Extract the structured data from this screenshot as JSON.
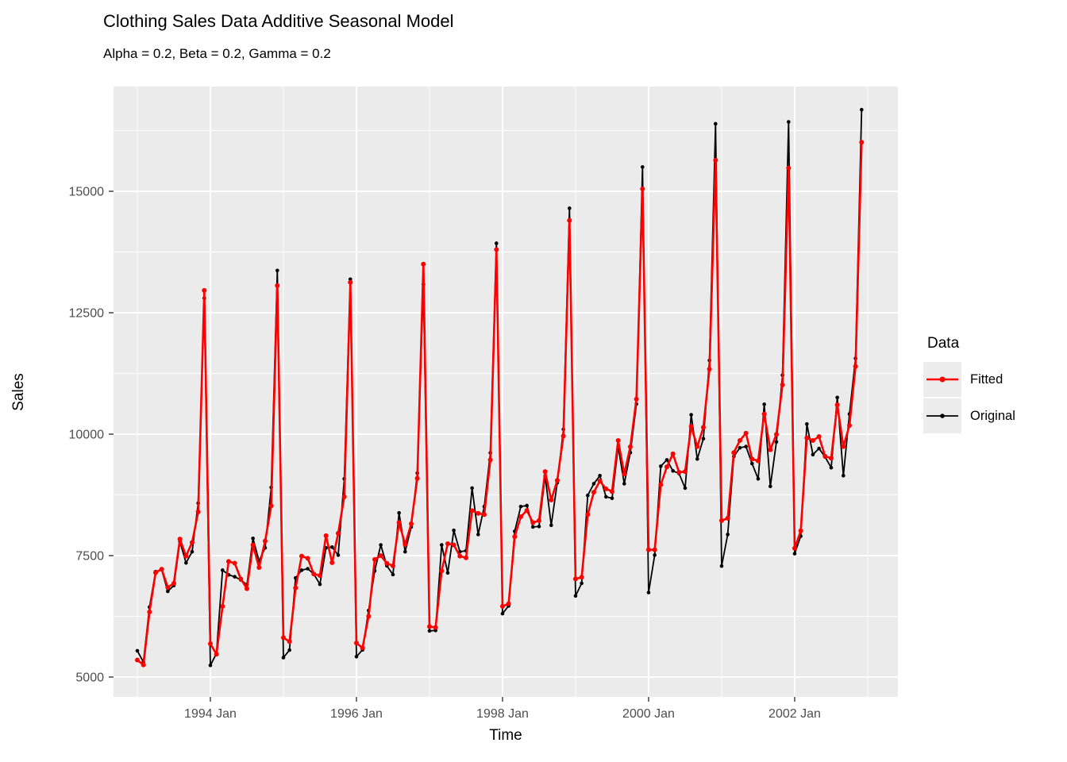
{
  "chart_data": {
    "type": "line",
    "title": "Clothing Sales Data Additive Seasonal Model",
    "subtitle": "Alpha = 0.2, Beta = 0.2, Gamma = 0.2",
    "xlabel": "Time",
    "ylabel": "Sales",
    "legend": {
      "title": "Data",
      "position": "right"
    },
    "panel_bg": "#EBEBEB",
    "grid_color": "#FFFFFF",
    "tick_label_color": "#4D4D4D",
    "tick_mark_color": "#333333",
    "grid": true,
    "ylim": [
      4591,
      17157
    ],
    "y_breaks": [
      5000,
      7500,
      10000,
      12500,
      15000
    ],
    "y_tick_labels": [
      "5000",
      "7500",
      "10000",
      "12500",
      "15000"
    ],
    "y_minor_breaks": [
      6250,
      8750,
      11250,
      13750,
      16250
    ],
    "x_tick_labels": [
      "1994 Jan",
      "1996 Jan",
      "1998 Jan",
      "2000 Jan",
      "2002 Jan"
    ],
    "x_break_month_index": [
      12,
      36,
      60,
      84,
      108
    ],
    "x_minor_month_index": [
      0,
      24,
      48,
      72,
      96,
      120
    ],
    "xlim_month_index": [
      -3.91,
      124.96
    ],
    "x": [
      "1993-01",
      "1993-02",
      "1993-03",
      "1993-04",
      "1993-05",
      "1993-06",
      "1993-07",
      "1993-08",
      "1993-09",
      "1993-10",
      "1993-11",
      "1993-12",
      "1994-01",
      "1994-02",
      "1994-03",
      "1994-04",
      "1994-05",
      "1994-06",
      "1994-07",
      "1994-08",
      "1994-09",
      "1994-10",
      "1994-11",
      "1994-12",
      "1995-01",
      "1995-02",
      "1995-03",
      "1995-04",
      "1995-05",
      "1995-06",
      "1995-07",
      "1995-08",
      "1995-09",
      "1995-10",
      "1995-11",
      "1995-12",
      "1996-01",
      "1996-02",
      "1996-03",
      "1996-04",
      "1996-05",
      "1996-06",
      "1996-07",
      "1996-08",
      "1996-09",
      "1996-10",
      "1996-11",
      "1996-12",
      "1997-01",
      "1997-02",
      "1997-03",
      "1997-04",
      "1997-05",
      "1997-06",
      "1997-07",
      "1997-08",
      "1997-09",
      "1997-10",
      "1997-11",
      "1997-12",
      "1998-01",
      "1998-02",
      "1998-03",
      "1998-04",
      "1998-05",
      "1998-06",
      "1998-07",
      "1998-08",
      "1998-09",
      "1998-10",
      "1998-11",
      "1998-12",
      "1999-01",
      "1999-02",
      "1999-03",
      "1999-04",
      "1999-05",
      "1999-06",
      "1999-07",
      "1999-08",
      "1999-09",
      "1999-10",
      "1999-11",
      "1999-12",
      "2000-01",
      "2000-02",
      "2000-03",
      "2000-04",
      "2000-05",
      "2000-06",
      "2000-07",
      "2000-08",
      "2000-09",
      "2000-10",
      "2000-11",
      "2000-12",
      "2001-01",
      "2001-02",
      "2001-03",
      "2001-04",
      "2001-05",
      "2001-06",
      "2001-07",
      "2001-08",
      "2001-09",
      "2001-10",
      "2001-11",
      "2001-12",
      "2002-01",
      "2002-02",
      "2002-03",
      "2002-04",
      "2002-05",
      "2002-06",
      "2002-07",
      "2002-08",
      "2002-09",
      "2002-10",
      "2002-11",
      "2002-12"
    ],
    "series": [
      {
        "name": "Fitted",
        "color": "#FF0000",
        "values": [
          5350,
          5250,
          6340,
          7150,
          7220,
          6845,
          6930,
          7840,
          7490,
          7770,
          8400,
          12960,
          5685,
          5470,
          6455,
          7380,
          7345,
          7020,
          6820,
          7720,
          7255,
          7800,
          8525,
          13060,
          5810,
          5730,
          6835,
          7490,
          7445,
          7120,
          7090,
          7910,
          7355,
          7960,
          8710,
          13125,
          5700,
          5600,
          6250,
          7420,
          7500,
          7340,
          7290,
          8180,
          7730,
          8155,
          9090,
          13500,
          6040,
          6020,
          7185,
          7745,
          7720,
          7490,
          7455,
          8425,
          8370,
          8345,
          9470,
          13800,
          6455,
          6510,
          7890,
          8300,
          8430,
          8180,
          8220,
          9230,
          8645,
          9050,
          9960,
          14400,
          7020,
          7055,
          8345,
          8805,
          9035,
          8875,
          8820,
          9870,
          9180,
          9740,
          10720,
          15050,
          7620,
          7620,
          8960,
          9325,
          9595,
          9215,
          9230,
          10160,
          9745,
          10140,
          11340,
          15640,
          8220,
          8270,
          9620,
          9870,
          10020,
          9490,
          9450,
          10415,
          9680,
          9995,
          11015,
          15480,
          7650,
          8010,
          9925,
          9870,
          9950,
          9545,
          9505,
          10605,
          9745,
          10180,
          11395,
          16010
        ]
      },
      {
        "name": "Original",
        "color": "#000000",
        "values": [
          5540,
          5310,
          6440,
          7170,
          7210,
          6765,
          6885,
          7790,
          7350,
          7580,
          8580,
          12800,
          5240,
          5485,
          7200,
          7105,
          7065,
          7000,
          6900,
          7855,
          7390,
          7660,
          8905,
          13370,
          5400,
          5555,
          7040,
          7200,
          7230,
          7120,
          6910,
          7660,
          7675,
          7510,
          9080,
          13190,
          5420,
          5560,
          6370,
          7185,
          7720,
          7290,
          7110,
          8380,
          7580,
          8090,
          9200,
          13085,
          5950,
          5960,
          7720,
          7145,
          8020,
          7580,
          7600,
          8890,
          7935,
          8510,
          9615,
          13930,
          6305,
          6465,
          8000,
          8510,
          8530,
          8090,
          8100,
          9135,
          8125,
          9000,
          10100,
          14650,
          6670,
          6930,
          8740,
          8980,
          9145,
          8710,
          8680,
          9745,
          8980,
          9620,
          10620,
          15500,
          6740,
          7510,
          9340,
          9470,
          9245,
          9190,
          8890,
          10400,
          9490,
          9905,
          11520,
          16390,
          7285,
          7935,
          9540,
          9720,
          9745,
          9395,
          9080,
          10615,
          8925,
          9840,
          11215,
          16430,
          7540,
          7900,
          10210,
          9580,
          9705,
          9530,
          9310,
          10755,
          9145,
          10415,
          11560,
          16680
        ]
      }
    ]
  }
}
